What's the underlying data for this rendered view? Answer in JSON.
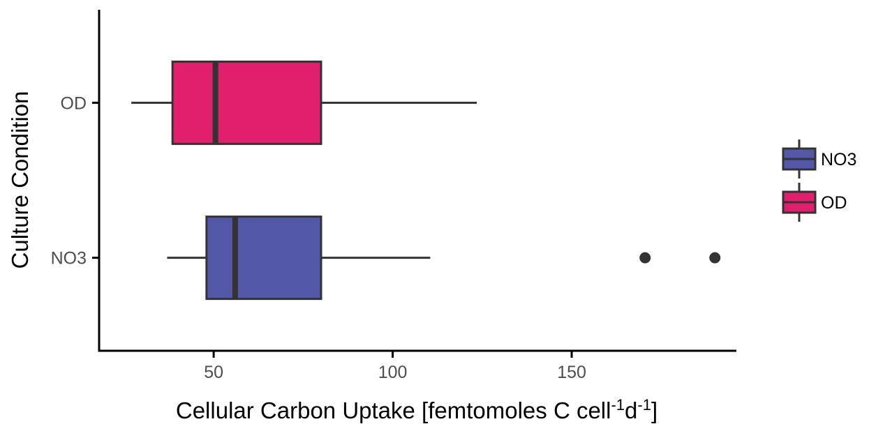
{
  "chart_data": {
    "type": "boxplot",
    "orientation": "horizontal",
    "title": "",
    "xlabel": {
      "main": "Cellular Carbon Uptake [femtomoles C cell",
      "sup1": "-1",
      "mid": "d",
      "sup2": "-1",
      "end": "]"
    },
    "ylabel": "Culture Condition",
    "xlim": [
      18,
      196
    ],
    "x_ticks": [
      {
        "value": 50,
        "label": "50"
      },
      {
        "value": 100,
        "label": "100"
      },
      {
        "value": 150,
        "label": "150"
      }
    ],
    "grid": false,
    "legend_position": "right",
    "series": [
      {
        "name": "OD",
        "color": "#E21F6C",
        "whisker_low": 27,
        "q1": 38.5,
        "median": 50.5,
        "q3": 80,
        "whisker_high": 123.5,
        "outliers": []
      },
      {
        "name": "NO3",
        "color": "#5257A7",
        "whisker_low": 37,
        "q1": 48,
        "median": 56,
        "q3": 80,
        "whisker_high": 110.5,
        "outliers": [
          170.5,
          190
        ]
      }
    ],
    "legend": [
      {
        "label": "NO3",
        "color": "#5257A7"
      },
      {
        "label": "OD",
        "color": "#E21F6C"
      }
    ]
  }
}
